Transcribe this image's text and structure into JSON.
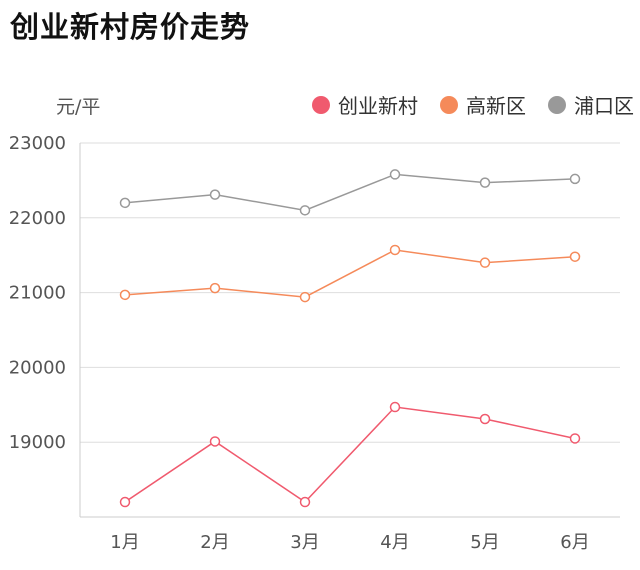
{
  "title": "创业新村房价走势",
  "unit_label": "元/平",
  "chart_data": {
    "type": "line",
    "title": "创业新村房价走势",
    "ylabel": "元/平",
    "xlabel": "",
    "categories": [
      "1月",
      "2月",
      "3月",
      "4月",
      "5月",
      "6月"
    ],
    "ylim": [
      18000,
      23000
    ],
    "yticks": [
      19000,
      20000,
      21000,
      22000,
      23000
    ],
    "grid": true,
    "legend": "top-right",
    "series": [
      {
        "name": "创业新村",
        "color": "#f05a6e",
        "values": [
          18200,
          19010,
          18200,
          19470,
          19310,
          19050
        ]
      },
      {
        "name": "高新区",
        "color": "#f58a5a",
        "values": [
          20970,
          21060,
          20940,
          21570,
          21400,
          21480
        ]
      },
      {
        "name": "浦口区",
        "color": "#999999",
        "values": [
          22200,
          22310,
          22100,
          22580,
          22470,
          22520
        ]
      }
    ]
  }
}
